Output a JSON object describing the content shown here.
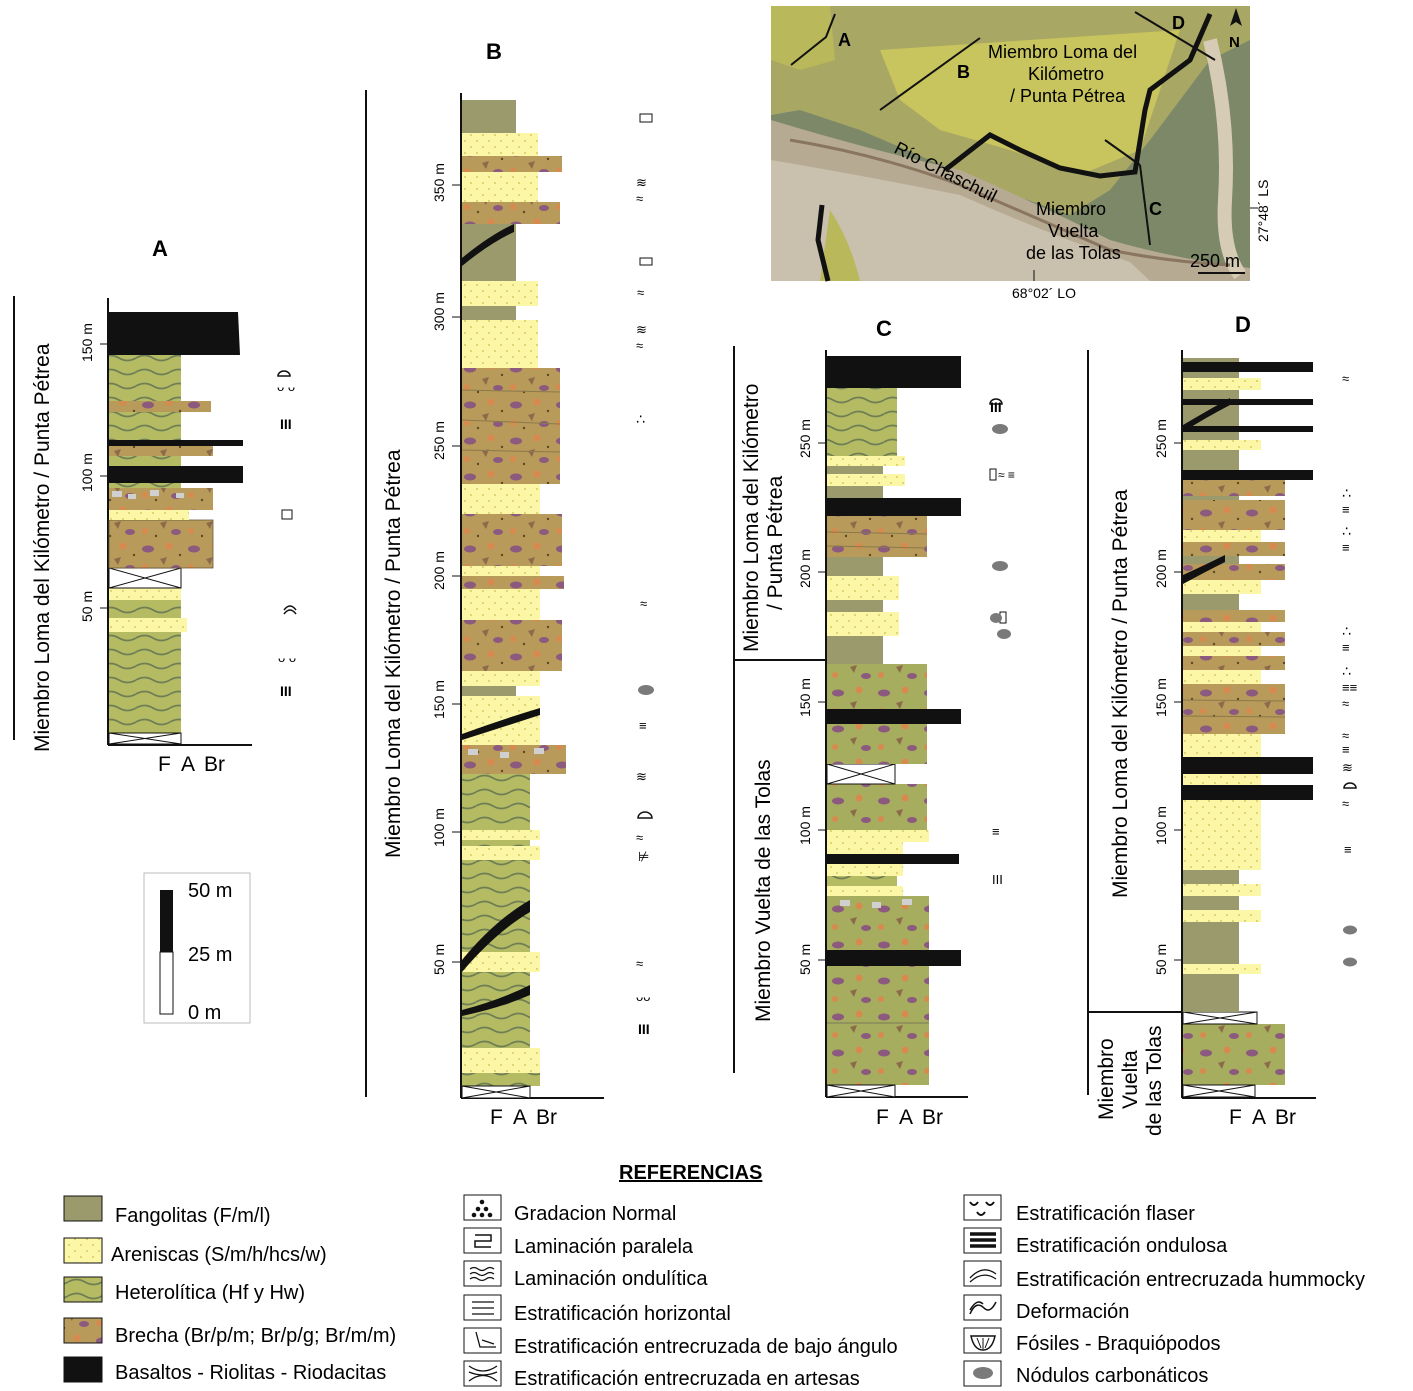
{
  "columns": {
    "A": {
      "title": "A",
      "member": "Miembro Loma del Kilómetro / Punta Pétrea",
      "ticks": [
        "50 m",
        "100 m",
        "150 m"
      ]
    },
    "B": {
      "title": "B",
      "member": "Miembro Loma del Kilómetro / Punta Pétrea",
      "ticks": [
        "50 m",
        "100 m",
        "150 m",
        "200 m",
        "250 m",
        "300 m",
        "350 m"
      ]
    },
    "C": {
      "title": "C",
      "member_upper_1": "Miembro Loma del Kilómetro",
      "member_upper_2": "/ Punta Pétrea",
      "member_lower": "Miembro Vuelta de las Tolas",
      "ticks": [
        "50 m",
        "100 m",
        "150 m",
        "200 m",
        "250 m"
      ]
    },
    "D": {
      "title": "D",
      "member_upper": "Miembro Loma del Kilómetro / Punta Pétrea",
      "member_lower_1": "Miembro",
      "member_lower_2": "Vuelta",
      "member_lower_3": "de las Tolas",
      "ticks": [
        "50 m",
        "100 m",
        "150 m",
        "200 m",
        "250 m"
      ]
    }
  },
  "grain_axis": [
    "F",
    "A",
    "Br"
  ],
  "scale_bar": {
    "labels": [
      "50 m",
      "25 m",
      "0 m"
    ]
  },
  "map": {
    "section_labels": [
      "A",
      "B",
      "C",
      "D"
    ],
    "member_top": [
      "Miembro Loma del",
      "Kilómetro",
      "/ Punta Pétrea"
    ],
    "member_bottom": [
      "Miembro",
      "Vuelta",
      "de las Tolas"
    ],
    "river": "Río Chaschuil",
    "scale": "250 m",
    "north": "N",
    "lat": "27°48´ LS",
    "lon": "68°02´ LO"
  },
  "references": {
    "title": "REFERENCIAS",
    "lithology": [
      {
        "label": "Fangolitas  (F/m/l)",
        "color": "#9b9a6c"
      },
      {
        "label": "Areniscas  (S/m/h/hcs/w)",
        "color": "#fbf7a6"
      },
      {
        "label": "Heterolítica  (Hf y Hw)",
        "color": "#b4bb63"
      },
      {
        "label": "Brecha (Br/p/m; Br/p/g; Br/m/m)",
        "color": "#b89a5a"
      },
      {
        "label": "Basaltos - Riolitas - Riodacitas",
        "color": "#111111"
      }
    ],
    "structures_mid": [
      {
        "label": "Gradacion Normal",
        "icon": "dots-triangle-icon"
      },
      {
        "label": "Laminación paralela",
        "icon": "parallel-lamination-icon"
      },
      {
        "label": "Laminación ondulítica",
        "icon": "ripple-lamination-icon"
      },
      {
        "label": "Estratificación horizontal",
        "icon": "horizontal-bedding-icon"
      },
      {
        "label": "Estratificación entrecruzada de bajo ángulo",
        "icon": "low-angle-cross-icon"
      },
      {
        "label": "Estratificación entrecruzada en artesas",
        "icon": "trough-cross-icon"
      }
    ],
    "structures_right": [
      {
        "label": "Estratificación flaser",
        "icon": "flaser-icon"
      },
      {
        "label": "Estratificación ondulosa",
        "icon": "wavy-bedding-icon"
      },
      {
        "label": "Estratificación entrecruzada hummocky",
        "icon": "hummocky-icon"
      },
      {
        "label": "Deformación",
        "icon": "deformation-icon"
      },
      {
        "label": "Fósiles - Braquiópodos",
        "icon": "brachiopod-icon"
      },
      {
        "label": "Nódulos carbonáticos",
        "icon": "nodule-icon"
      }
    ]
  }
}
